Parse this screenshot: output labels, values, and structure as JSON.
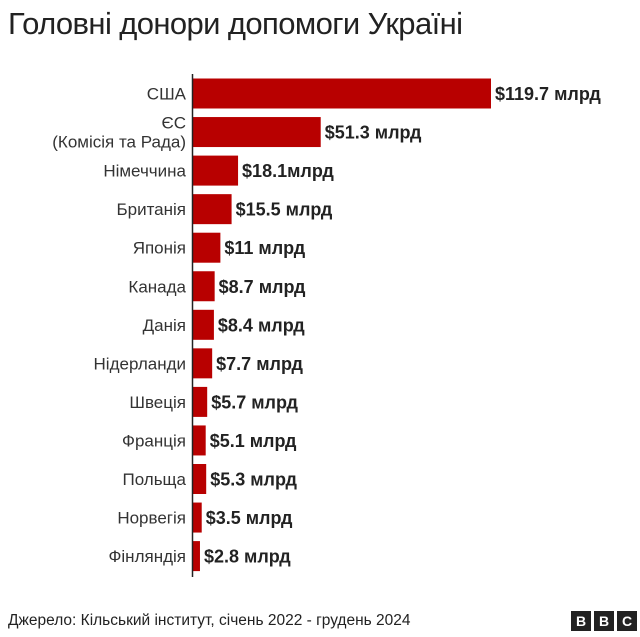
{
  "chart_data": {
    "type": "bar",
    "orientation": "horizontal",
    "title": "Головні донори допомоги Україні",
    "unit": "млрд $",
    "categories": [
      [
        "США"
      ],
      [
        "ЄС",
        "(Комісія та Рада)"
      ],
      [
        "Німеччина"
      ],
      [
        "Британія"
      ],
      [
        "Японія"
      ],
      [
        "Канада"
      ],
      [
        "Данія"
      ],
      [
        "Нідерланди"
      ],
      [
        "Швеція"
      ],
      [
        "Франція"
      ],
      [
        "Польща"
      ],
      [
        "Норвегія"
      ],
      [
        "Фінляндія"
      ]
    ],
    "values": [
      119.7,
      51.3,
      18.1,
      15.5,
      11,
      8.7,
      8.4,
      7.7,
      5.7,
      5.1,
      5.3,
      3.5,
      2.8
    ],
    "value_labels": [
      "$119.7 млрд",
      "$51.3 млрд",
      "$18.1млрд",
      "$15.5 млрд",
      "$11 млрд",
      "$8.7 млрд",
      "$8.4 млрд",
      "$7.7 млрд",
      "$5.7 млрд",
      "$5.1 млрд",
      "$5.3 млрд",
      "$3.5 млрд",
      "$2.8 млрд"
    ],
    "bar_color": "#b80000",
    "axis_color": "#222222",
    "xlim": [
      0,
      119.7
    ],
    "grid": false,
    "legend": "none"
  },
  "footer": {
    "source": "Джерело: Кільський інститут, січень 2022 - грудень 2024",
    "logo": [
      "B",
      "B",
      "C"
    ]
  }
}
